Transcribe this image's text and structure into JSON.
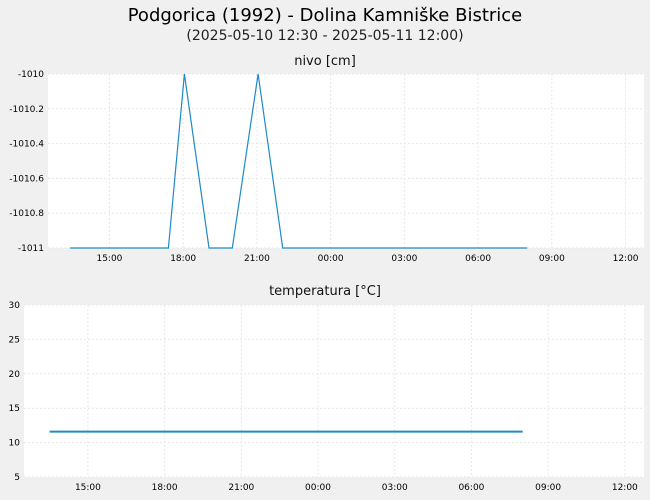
{
  "header": {
    "title": "Podgorica (1992) - Dolina Kamniške Bistrice",
    "subtitle": "(2025-05-10 12:30 - 2025-05-11 12:00)"
  },
  "chart_data": [
    {
      "type": "line",
      "title": "nivo [cm]",
      "xlabel": "",
      "ylabel": "",
      "x_ticks": [
        "15:00",
        "18:00",
        "21:00",
        "00:00",
        "03:00",
        "06:00",
        "09:00",
        "12:00"
      ],
      "x_tick_hours": [
        15,
        18,
        21,
        24,
        27,
        30,
        33,
        36
      ],
      "xlim_hours": [
        12.5,
        36.75
      ],
      "y_ticks": [
        "-1010",
        "-1010.2",
        "-1010.4",
        "-1010.6",
        "-1010.8",
        "-1011"
      ],
      "y_tick_values": [
        -1010,
        -1010.2,
        -1010.4,
        -1010.6,
        -1010.8,
        -1011
      ],
      "ylim": [
        -1011,
        -1010
      ],
      "grid": true,
      "series": [
        {
          "color": "#1f8ac8",
          "x_hours": [
            13.4,
            17.4,
            18.05,
            19.05,
            20.0,
            21.05,
            22.05,
            32.0
          ],
          "values": [
            -1011,
            -1011,
            -1010,
            -1011,
            -1011,
            -1010,
            -1011,
            -1011
          ]
        }
      ]
    },
    {
      "type": "line",
      "title": "temperatura [°C]",
      "xlabel": "",
      "ylabel": "",
      "x_ticks": [
        "15:00",
        "18:00",
        "21:00",
        "00:00",
        "03:00",
        "06:00",
        "09:00",
        "12:00"
      ],
      "x_tick_hours": [
        15,
        18,
        21,
        24,
        27,
        30,
        33,
        36
      ],
      "xlim_hours": [
        12.5,
        36.75
      ],
      "y_ticks": [
        "30",
        "25",
        "20",
        "15",
        "10",
        "5"
      ],
      "y_tick_values": [
        30,
        25,
        20,
        15,
        10,
        5
      ],
      "ylim": [
        5,
        30
      ],
      "grid": true,
      "series": [
        {
          "color": "#1f8ac8",
          "x_hours": [
            13.5,
            32.0
          ],
          "values": [
            11.6,
            11.6
          ]
        }
      ]
    }
  ]
}
